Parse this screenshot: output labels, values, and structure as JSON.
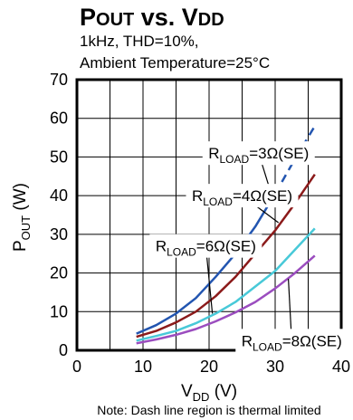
{
  "chart_data": {
    "type": "line",
    "title": {
      "main": "P",
      "main_sub": "OUT",
      "mid": " vs. V",
      "mid_sub": "DD"
    },
    "subtitle_lines": [
      "1kHz, THD=10%,",
      "Ambient Temperature=25°C"
    ],
    "xlabel": {
      "main": "V",
      "sub": "DD",
      "suffix": " (V)"
    },
    "ylabel": {
      "main": "P",
      "sub": "OUT",
      "suffix": " (W)"
    },
    "xlim": [
      0,
      40
    ],
    "ylim": [
      0,
      70
    ],
    "x_ticks": [
      0,
      10,
      20,
      30,
      40
    ],
    "y_ticks": [
      0,
      10,
      20,
      30,
      40,
      50,
      60,
      70
    ],
    "grid": true,
    "series": [
      {
        "name": "RLOAD=3Ω(SE)",
        "label_main": "R",
        "label_sub": "LOAD",
        "label_suffix": "=3Ω(SE)",
        "color": "#2255b0",
        "x": [
          9,
          12,
          15,
          18,
          21,
          24,
          27,
          30,
          33,
          36
        ],
        "y": [
          4.3,
          6.5,
          9.5,
          13.5,
          19,
          25,
          32,
          40.5,
          49.5,
          58
        ],
        "dash_from_x": 30
      },
      {
        "name": "RLOAD=4Ω(SE)",
        "label_main": "R",
        "label_sub": "LOAD",
        "label_suffix": "=4Ω(SE)",
        "color": "#8b1a1a",
        "x": [
          9,
          12,
          15,
          18,
          21,
          24,
          27,
          30,
          33,
          36
        ],
        "y": [
          3.5,
          5,
          7.2,
          10,
          14,
          19,
          25,
          31,
          38,
          45.5
        ]
      },
      {
        "name": "RLOAD=6Ω(SE)",
        "label_main": "R",
        "label_sub": "LOAD",
        "label_suffix": "=6Ω(SE)",
        "color": "#48c9d8",
        "x": [
          9,
          12,
          15,
          18,
          21,
          24,
          27,
          30,
          33,
          36
        ],
        "y": [
          2.5,
          3.7,
          5,
          7,
          9.5,
          12.5,
          16.5,
          20.5,
          26,
          31.5
        ]
      },
      {
        "name": "RLOAD=8Ω(SE)",
        "label_main": "R",
        "label_sub": "LOAD",
        "label_suffix": "=8Ω(SE)",
        "color": "#9b4dbf",
        "x": [
          9,
          12,
          15,
          18,
          21,
          24,
          27,
          30,
          33,
          36
        ],
        "y": [
          1.8,
          2.8,
          4,
          5.5,
          7.5,
          9.8,
          12.5,
          16,
          20,
          24.5
        ]
      }
    ],
    "annotations": [
      {
        "series_index": 0,
        "pointer": [
          29.5,
          40
        ],
        "text_at": [
          27.5,
          51
        ]
      },
      {
        "series_index": 1,
        "pointer": [
          30.5,
          33
        ],
        "text_at": [
          25,
          40
        ]
      },
      {
        "series_index": 2,
        "pointer": [
          20.5,
          9.5
        ],
        "text_at": [
          19.5,
          27
        ]
      },
      {
        "series_index": 3,
        "pointer": [
          32,
          18.5
        ],
        "text_at": [
          32.5,
          2.5
        ]
      }
    ],
    "note": "Note: Dash line region is thermal limited"
  }
}
